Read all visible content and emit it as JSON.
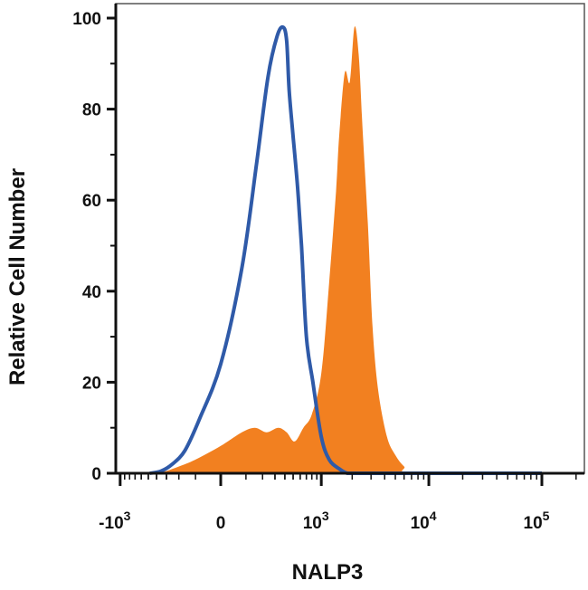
{
  "chart_data": {
    "type": "area",
    "title": "",
    "xlabel": "NALP3",
    "ylabel": "Relative Cell Number",
    "x_scale": "biexponential",
    "x_ticks": [
      {
        "value": -1000,
        "base": "-10",
        "exp": "3"
      },
      {
        "value": 0,
        "base": "0",
        "exp": ""
      },
      {
        "value": 1000,
        "base": "10",
        "exp": "3"
      },
      {
        "value": 10000,
        "base": "10",
        "exp": "4"
      },
      {
        "value": 100000,
        "base": "10",
        "exp": "5"
      }
    ],
    "y_ticks": [
      "0",
      "20",
      "40",
      "60",
      "80",
      "100"
    ],
    "ylim": [
      0,
      100
    ],
    "grid": false,
    "legend": "none",
    "series": [
      {
        "style": "line",
        "color": "#2f5aa8",
        "x": [
          -480,
          -350,
          -250,
          -160,
          -80,
          0,
          80,
          160,
          240,
          320,
          380,
          420,
          450,
          500,
          560,
          620,
          700,
          820,
          1000,
          1200,
          1500,
          1800,
          2200,
          3000,
          5000,
          100000
        ],
        "y": [
          0,
          0.5,
          2,
          5,
          12,
          24,
          45,
          68,
          87,
          96,
          98,
          95,
          84,
          74,
          63,
          50,
          30,
          20,
          8,
          3,
          1,
          0,
          0,
          0,
          0,
          0
        ]
      },
      {
        "style": "filled",
        "color": "#f28020",
        "x": [
          -400,
          -300,
          -200,
          -100,
          0,
          80,
          150,
          230,
          330,
          420,
          520,
          650,
          800,
          1000,
          1200,
          1400,
          1500,
          1700,
          1900,
          2100,
          2300,
          2500,
          2800,
          3100,
          3500,
          4200,
          5000,
          6000,
          7500,
          100000
        ],
        "y": [
          0,
          0.5,
          1.5,
          3,
          6,
          9,
          10,
          9,
          10,
          9,
          7,
          10,
          13,
          22,
          42,
          62,
          74,
          88,
          86,
          98,
          92,
          76,
          55,
          32,
          18,
          8,
          4,
          1.5,
          0,
          0
        ]
      }
    ]
  }
}
